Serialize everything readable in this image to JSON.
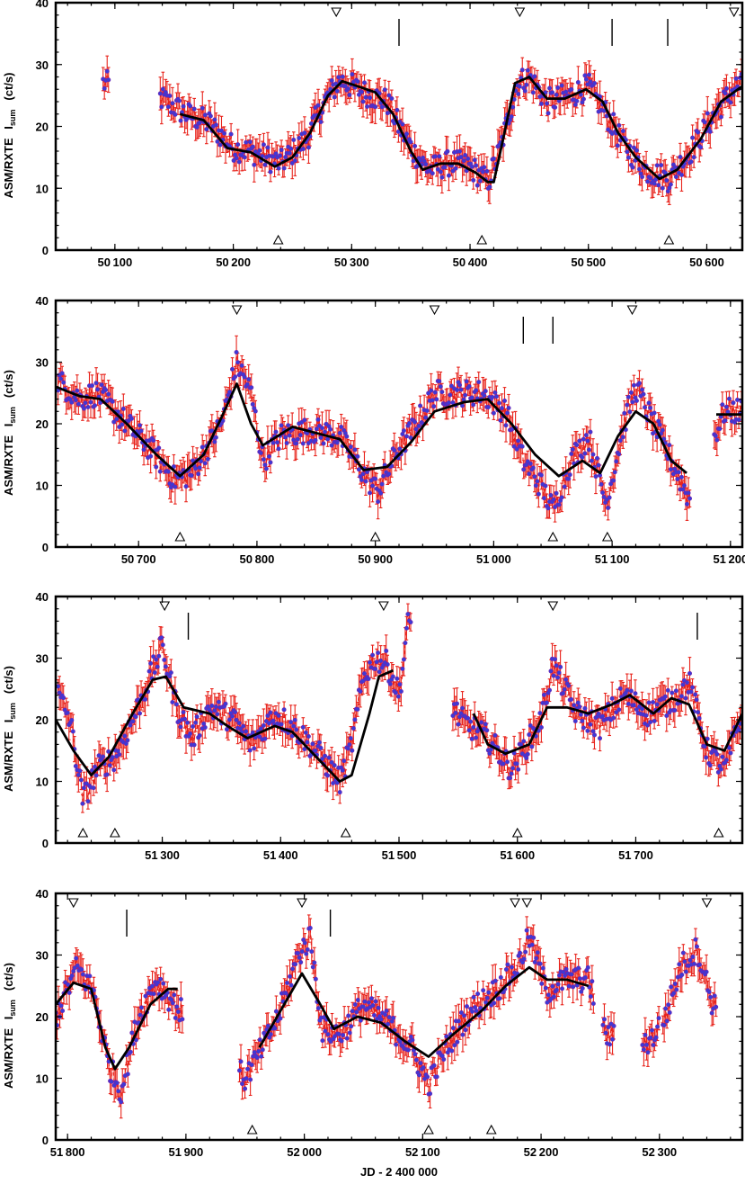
{
  "chart_data": [
    {
      "type": "scatter",
      "xlim": [
        50050,
        50630
      ],
      "ylim": [
        0,
        40
      ],
      "xticks": [
        50100,
        50200,
        50300,
        50400,
        50500,
        50600
      ],
      "yticks": [
        0,
        10,
        20,
        30,
        40
      ],
      "ylabel_main": "ASM/RXTE",
      "ylabel_sym": "I",
      "ylabel_sub": "sum",
      "ylabel_unit": "(ct/s)",
      "down_triangles": [
        50287,
        50442,
        50623
      ],
      "up_triangles": [
        50238,
        50410,
        50568
      ],
      "vertical_lines": [
        50340,
        50520,
        50567
      ],
      "knots": [
        [
          50090,
          27
        ],
        [
          50140,
          24.5
        ],
        [
          50160,
          22
        ],
        [
          50180,
          20.5
        ],
        [
          50200,
          16.5
        ],
        [
          50215,
          16
        ],
        [
          50240,
          14
        ],
        [
          50262,
          18
        ],
        [
          50277,
          24
        ],
        [
          50290,
          27.5
        ],
        [
          50310,
          25.5
        ],
        [
          50330,
          24
        ],
        [
          50340,
          20
        ],
        [
          50352,
          16
        ],
        [
          50365,
          13
        ],
        [
          50385,
          14.2
        ],
        [
          50400,
          13.5
        ],
        [
          50415,
          11
        ],
        [
          50425,
          16
        ],
        [
          50440,
          27
        ],
        [
          50450,
          28
        ],
        [
          50465,
          24
        ],
        [
          50485,
          25
        ],
        [
          50500,
          26.5
        ],
        [
          50515,
          22
        ],
        [
          50530,
          17
        ],
        [
          50548,
          13
        ],
        [
          50568,
          11.5
        ],
        [
          50590,
          17
        ],
        [
          50610,
          23
        ],
        [
          50625,
          26.5
        ]
      ],
      "trend": [
        [
          50155,
          22
        ],
        [
          50175,
          21
        ],
        [
          50195,
          16.5
        ],
        [
          50215,
          15.8
        ],
        [
          50235,
          13.5
        ],
        [
          50250,
          15
        ],
        [
          50265,
          19
        ],
        [
          50280,
          25
        ],
        [
          50292,
          27.3
        ],
        [
          50305,
          26.5
        ],
        [
          50320,
          25.5
        ],
        [
          50335,
          22
        ],
        [
          50350,
          16
        ],
        [
          50360,
          13
        ],
        [
          50375,
          14
        ],
        [
          50390,
          14
        ],
        [
          50405,
          12.5
        ],
        [
          50415,
          11
        ],
        [
          50420,
          11
        ],
        [
          50428,
          18
        ],
        [
          50438,
          27
        ],
        [
          50450,
          28
        ],
        [
          50465,
          24.5
        ],
        [
          50480,
          24.5
        ],
        [
          50498,
          26
        ],
        [
          50512,
          24
        ],
        [
          50525,
          19
        ],
        [
          50540,
          15
        ],
        [
          50560,
          11.5
        ],
        [
          50575,
          13
        ],
        [
          50595,
          18
        ],
        [
          50612,
          24
        ],
        [
          50630,
          26.5
        ]
      ],
      "gaps": [
        [
          50095,
          50138
        ]
      ]
    },
    {
      "type": "scatter",
      "xlim": [
        50630,
        51210
      ],
      "ylim": [
        0,
        40
      ],
      "xticks": [
        50700,
        50800,
        50900,
        51000,
        51100,
        51200
      ],
      "yticks": [
        0,
        10,
        20,
        30,
        40
      ],
      "ylabel_main": "ASM/RXTE",
      "ylabel_sym": "I",
      "ylabel_sub": "sum",
      "ylabel_unit": "(ct/s)",
      "down_triangles": [
        50783,
        50950,
        51117
      ],
      "up_triangles": [
        50735,
        50900,
        51050,
        51096
      ],
      "vertical_lines": [
        51025,
        51050
      ],
      "knots": [
        [
          50632,
          27
        ],
        [
          50650,
          24
        ],
        [
          50665,
          25
        ],
        [
          50685,
          21
        ],
        [
          50710,
          16
        ],
        [
          50730,
          11
        ],
        [
          50745,
          12
        ],
        [
          50770,
          20
        ],
        [
          50783,
          30
        ],
        [
          50795,
          25
        ],
        [
          50805,
          14
        ],
        [
          50820,
          18
        ],
        [
          50845,
          19
        ],
        [
          50870,
          18
        ],
        [
          50890,
          12
        ],
        [
          50902,
          9
        ],
        [
          50920,
          16
        ],
        [
          50935,
          20
        ],
        [
          50950,
          25
        ],
        [
          50970,
          25
        ],
        [
          50990,
          25
        ],
        [
          51010,
          22
        ],
        [
          51025,
          14
        ],
        [
          51040,
          10
        ],
        [
          51050,
          6
        ],
        [
          51065,
          14
        ],
        [
          51080,
          18
        ],
        [
          51095,
          7
        ],
        [
          51110,
          20
        ],
        [
          51120,
          26
        ],
        [
          51135,
          20
        ],
        [
          51150,
          14
        ],
        [
          51165,
          8
        ],
        [
          51195,
          22
        ],
        [
          51205,
          22
        ]
      ],
      "trend": [
        [
          50630,
          26
        ],
        [
          50650,
          24.5
        ],
        [
          50668,
          24
        ],
        [
          50690,
          20
        ],
        [
          50715,
          15
        ],
        [
          50735,
          11.5
        ],
        [
          50755,
          15
        ],
        [
          50770,
          21
        ],
        [
          50783,
          26.5
        ],
        [
          50795,
          20
        ],
        [
          50805,
          16.5
        ],
        [
          50830,
          19.5
        ],
        [
          50850,
          18.5
        ],
        [
          50870,
          17.5
        ],
        [
          50890,
          12.5
        ],
        [
          50910,
          13
        ],
        [
          50930,
          17
        ],
        [
          50950,
          22
        ],
        [
          50975,
          23.5
        ],
        [
          50995,
          24
        ],
        [
          51015,
          20
        ],
        [
          51035,
          15
        ],
        [
          51055,
          11.5
        ],
        [
          51075,
          14
        ],
        [
          51090,
          12
        ],
        [
          51105,
          18
        ],
        [
          51120,
          22
        ],
        [
          51135,
          20
        ],
        [
          51150,
          14
        ],
        [
          51163,
          12
        ]
      ],
      "trend2": [
        [
          51188,
          21.5
        ],
        [
          51210,
          21.5
        ]
      ],
      "gaps": [
        [
          51166,
          51186
        ]
      ]
    },
    {
      "type": "scatter",
      "xlim": [
        51210,
        51790
      ],
      "ylim": [
        0,
        40
      ],
      "xticks": [
        51300,
        51400,
        51500,
        51600,
        51700
      ],
      "yticks": [
        0,
        10,
        20,
        30,
        40
      ],
      "ylabel_main": "ASM/RXTE",
      "ylabel_sym": "I",
      "ylabel_sub": "sum",
      "ylabel_unit": "(ct/s)",
      "down_triangles": [
        51302,
        51487,
        51630
      ],
      "up_triangles": [
        51233,
        51260,
        51455,
        51600,
        51770
      ],
      "vertical_lines": [
        51322,
        51752
      ],
      "knots": [
        [
          51212,
          24
        ],
        [
          51222,
          20
        ],
        [
          51233,
          7
        ],
        [
          51245,
          12
        ],
        [
          51260,
          14
        ],
        [
          51275,
          20
        ],
        [
          51290,
          27
        ],
        [
          51300,
          32
        ],
        [
          51312,
          22
        ],
        [
          51325,
          17
        ],
        [
          51340,
          22
        ],
        [
          51360,
          20
        ],
        [
          51375,
          16
        ],
        [
          51395,
          21
        ],
        [
          51410,
          19
        ],
        [
          51430,
          15
        ],
        [
          51450,
          10
        ],
        [
          51460,
          16
        ],
        [
          51470,
          27
        ],
        [
          51480,
          30
        ],
        [
          51490,
          29
        ],
        [
          51500,
          24
        ],
        [
          51508,
          36
        ],
        [
          51552,
          20
        ],
        [
          51575,
          17
        ],
        [
          51595,
          12
        ],
        [
          51608,
          16
        ],
        [
          51620,
          20
        ],
        [
          51630,
          29
        ],
        [
          51650,
          21
        ],
        [
          51670,
          19
        ],
        [
          51690,
          24
        ],
        [
          51710,
          21
        ],
        [
          51730,
          23
        ],
        [
          51745,
          26
        ],
        [
          51760,
          15
        ],
        [
          51775,
          12
        ],
        [
          51788,
          20
        ]
      ],
      "trend": [
        [
          51210,
          20
        ],
        [
          51225,
          15
        ],
        [
          51240,
          11
        ],
        [
          51255,
          14
        ],
        [
          51275,
          21
        ],
        [
          51292,
          26.5
        ],
        [
          51303,
          27
        ],
        [
          51318,
          22
        ],
        [
          51340,
          21
        ],
        [
          51355,
          19
        ],
        [
          51372,
          17
        ],
        [
          51395,
          19
        ],
        [
          51410,
          18
        ],
        [
          51430,
          14
        ],
        [
          51450,
          10
        ],
        [
          51460,
          11
        ],
        [
          51475,
          21
        ],
        [
          51483,
          27
        ],
        [
          51495,
          28
        ]
      ],
      "trend2": [
        [
          51563,
          21
        ],
        [
          51575,
          16
        ],
        [
          51590,
          14.5
        ],
        [
          51610,
          16
        ],
        [
          51625,
          22
        ],
        [
          51642,
          22
        ],
        [
          51660,
          21
        ],
        [
          51680,
          22.5
        ],
        [
          51695,
          24
        ],
        [
          51715,
          21
        ],
        [
          51730,
          23.5
        ],
        [
          51745,
          22.5
        ],
        [
          51760,
          16
        ],
        [
          51775,
          15
        ],
        [
          51790,
          21
        ]
      ],
      "gaps": [
        [
          51510,
          51545
        ]
      ]
    },
    {
      "type": "scatter",
      "xlim": [
        51790,
        52370
      ],
      "ylim": [
        0,
        40
      ],
      "xticks": [
        51800,
        51900,
        52000,
        52100,
        52200,
        52300
      ],
      "yticks": [
        0,
        10,
        20,
        30,
        40
      ],
      "ylabel_main": "ASM/RXTE",
      "ylabel_sym": "I",
      "ylabel_sub": "sum",
      "ylabel_unit": "(ct/s)",
      "xlabel": "JD - 2 400 000",
      "down_triangles": [
        51805,
        51998,
        52178,
        52188,
        52340
      ],
      "up_triangles": [
        51956,
        52105,
        52158
      ],
      "vertical_lines": [
        51850,
        52022
      ],
      "knots": [
        [
          51790,
          20
        ],
        [
          51808,
          28
        ],
        [
          51822,
          24
        ],
        [
          51835,
          12
        ],
        [
          51845,
          8
        ],
        [
          51860,
          20
        ],
        [
          51875,
          26
        ],
        [
          51890,
          22
        ],
        [
          51895,
          21
        ],
        [
          51950,
          10
        ],
        [
          51962,
          14
        ],
        [
          51978,
          20
        ],
        [
          51995,
          30
        ],
        [
          52005,
          33
        ],
        [
          52015,
          18
        ],
        [
          52030,
          17
        ],
        [
          52050,
          22
        ],
        [
          52070,
          19
        ],
        [
          52090,
          15
        ],
        [
          52105,
          9
        ],
        [
          52120,
          15
        ],
        [
          52140,
          21
        ],
        [
          52160,
          24
        ],
        [
          52180,
          28
        ],
        [
          52190,
          33
        ],
        [
          52205,
          24
        ],
        [
          52220,
          26
        ],
        [
          52240,
          26
        ],
        [
          52255,
          17
        ],
        [
          52292,
          16
        ],
        [
          52305,
          20
        ],
        [
          52318,
          28
        ],
        [
          52332,
          31
        ],
        [
          52345,
          22
        ]
      ],
      "trend": [
        [
          51790,
          22
        ],
        [
          51805,
          25.5
        ],
        [
          51820,
          24.5
        ],
        [
          51832,
          15
        ],
        [
          51840,
          11.5
        ],
        [
          51852,
          15
        ],
        [
          51870,
          22
        ],
        [
          51885,
          24.5
        ],
        [
          51893,
          24.5
        ]
      ],
      "trend2": [
        [
          51962,
          15
        ],
        [
          51980,
          21
        ],
        [
          51998,
          27
        ],
        [
          52012,
          22.5
        ],
        [
          52025,
          18
        ],
        [
          52045,
          20
        ],
        [
          52065,
          19
        ],
        [
          52085,
          16
        ],
        [
          52105,
          13.5
        ],
        [
          52125,
          17
        ],
        [
          52150,
          21
        ],
        [
          52170,
          25
        ],
        [
          52190,
          28
        ],
        [
          52205,
          26
        ],
        [
          52222,
          26
        ],
        [
          52240,
          25
        ]
      ],
      "gaps": [
        [
          51898,
          51945
        ],
        [
          52245,
          52252
        ],
        [
          52262,
          52285
        ],
        [
          52300,
          52302
        ],
        [
          52348,
          52370
        ]
      ]
    }
  ]
}
